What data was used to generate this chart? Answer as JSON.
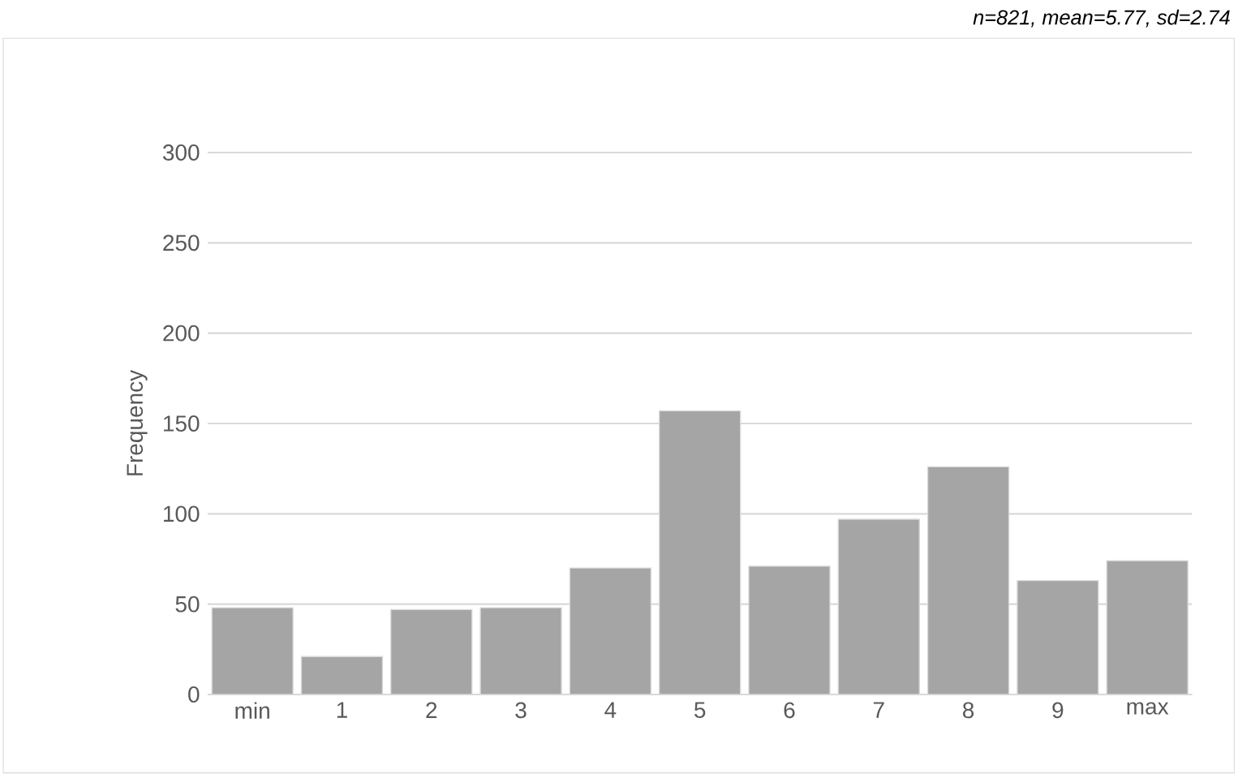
{
  "chart_data": {
    "type": "bar",
    "subtitle": "n=821, mean=5.77, sd=2.74",
    "ylabel": "Frequency",
    "categories": [
      "min",
      "1",
      "2",
      "3",
      "4",
      "5",
      "6",
      "7",
      "8",
      "9",
      "max"
    ],
    "values": [
      48,
      21,
      47,
      48,
      70,
      157,
      71,
      97,
      126,
      63,
      74
    ],
    "color": "#a5a5a5",
    "ylim": [
      0,
      300
    ],
    "yticks": [
      0,
      50,
      100,
      150,
      200,
      250,
      300
    ],
    "grid": "y"
  }
}
